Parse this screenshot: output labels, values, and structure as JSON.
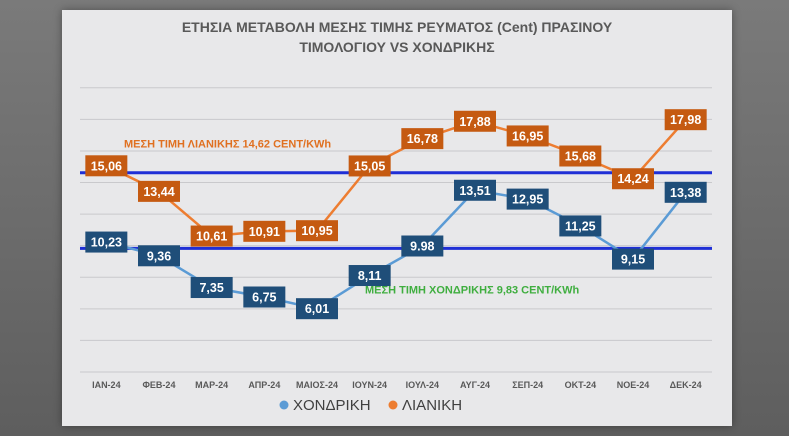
{
  "chart_data": {
    "type": "line",
    "title_line1": "ΕΤΗΣΙΑ ΜΕΤΑΒΟΛΗ ΜΕΣΗΣ ΤΙΜΗΣ ΡΕΥΜΑΤΟΣ (Cent) ΠΡΑΣΙΝΟΥ",
    "title_line2": "ΤΙΜΟΛΟΓΙΟΥ VS ΧΟΝΔΡΙΚΗΣ",
    "categories": [
      "ΙΑΝ-24",
      "ΦΕΒ-24",
      "ΜΑΡ-24",
      "ΑΠΡ-24",
      "ΜΑΙΟΣ-24",
      "ΙΟΥΝ-24",
      "ΙΟΥΛ-24",
      "ΑΥΓ-24",
      "ΣΕΠ-24",
      "ΟΚΤ-24",
      "ΝΟΕ-24",
      "ΔΕΚ-24"
    ],
    "series": [
      {
        "name": "ΧΟΝΔΡΙΚΗ",
        "color": "#5b9bd5",
        "label_color": "#1f4e79",
        "values": [
          10.23,
          9.36,
          7.35,
          6.75,
          6.01,
          8.11,
          9.98,
          13.51,
          12.95,
          11.25,
          9.15,
          13.38
        ],
        "labels": [
          "10,23",
          "9,36",
          "7,35",
          "6,75",
          "6,01",
          "8,11",
          "9.98",
          "13,51",
          "12,95",
          "11,25",
          "9,15",
          "13,38"
        ]
      },
      {
        "name": "ΛΙΑΝΙΚΗ",
        "color": "#ed7d31",
        "label_color": "#c55a11",
        "values": [
          15.06,
          13.44,
          10.61,
          10.91,
          10.95,
          15.05,
          16.78,
          17.88,
          16.95,
          15.68,
          14.24,
          17.98
        ],
        "labels": [
          "15,06",
          "13,44",
          "10,61",
          "10,91",
          "10,95",
          "15,05",
          "16,78",
          "17,88",
          "16,95",
          "15,68",
          "14,24",
          "17,98"
        ]
      }
    ],
    "reference_lines": [
      {
        "value": 14.62,
        "color": "#1f2fd6",
        "label": "ΜΕΣΗ ΤΙΜΗ ΛΙΑΝΙΚΗΣ 14,62 CENT/KWh"
      },
      {
        "value": 9.83,
        "color": "#1f2fd6",
        "label": "ΜΕΣΗ ΤΙΜΗ ΧΟΝΔΡΙΚΗΣ 9,83 CENT/KWh"
      }
    ],
    "ylim": [
      2,
      21
    ],
    "grid": true,
    "legend_position": "bottom"
  }
}
